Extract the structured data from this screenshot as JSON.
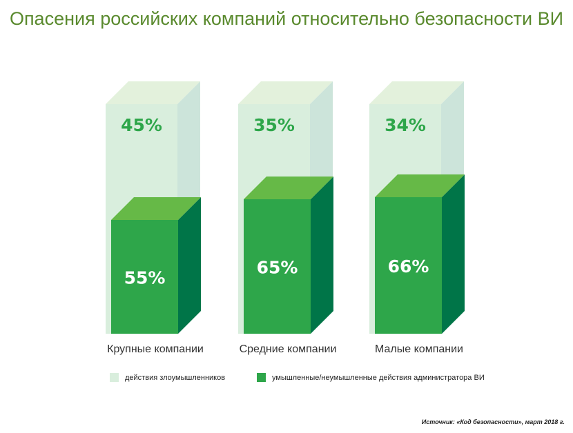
{
  "chart_data": {
    "type": "bar",
    "stacked": true,
    "title": "Опасения российских компаний относительно безопасности ВИ",
    "categories": [
      "Крупные компании",
      "Средние компании",
      "Малые компании"
    ],
    "series": [
      {
        "name": "умышленные/неумышленные действия администратора ВИ",
        "values": [
          55,
          65,
          66
        ],
        "labels": [
          "55%",
          "65%",
          "66%"
        ],
        "color": "#2ea64a"
      },
      {
        "name": "действия злоумышленников",
        "values": [
          45,
          35,
          34
        ],
        "labels": [
          "45%",
          "35%",
          "34%"
        ],
        "color": "#d9eedd"
      }
    ],
    "ylim": [
      0,
      100
    ],
    "legend_position": "bottom",
    "source": "Источник: «Код безопасности», март 2018 г."
  }
}
